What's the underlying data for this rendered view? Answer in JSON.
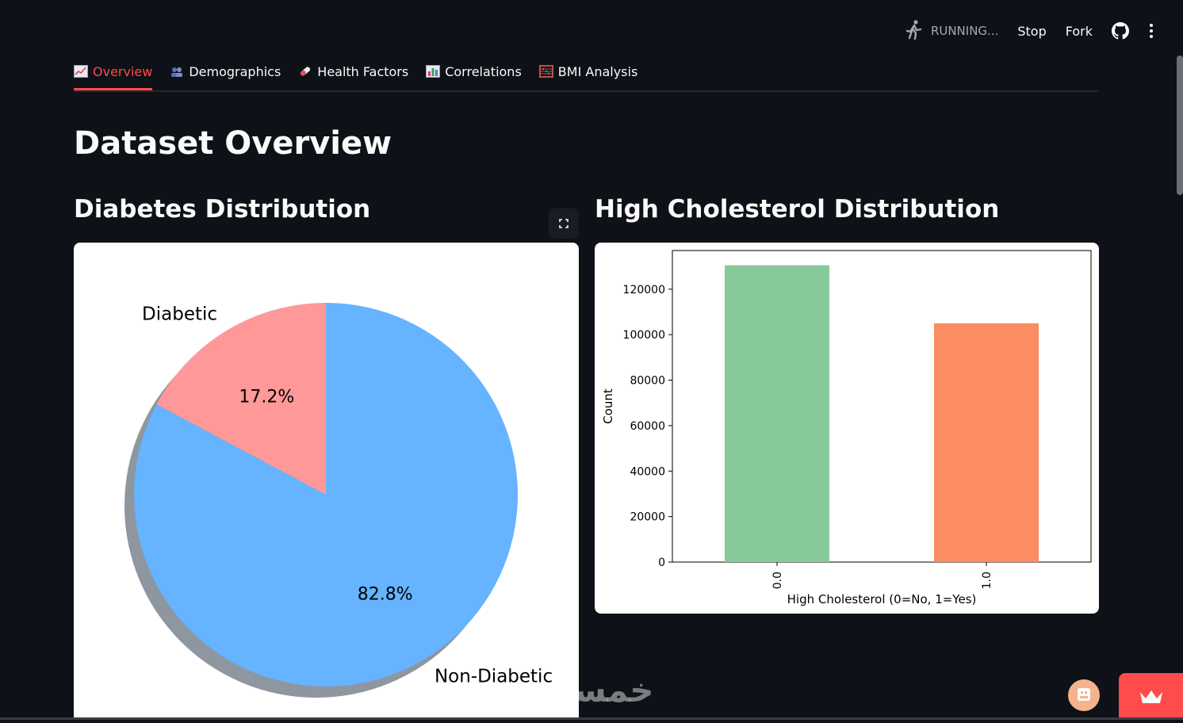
{
  "header": {
    "status": "RUNNING...",
    "stop_label": "Stop",
    "fork_label": "Fork",
    "icons": [
      "running-man-icon",
      "github-icon",
      "more-vertical-icon"
    ]
  },
  "tabs": [
    {
      "label": "Overview",
      "icon": "chart-increasing-emoji",
      "active": true
    },
    {
      "label": "Demographics",
      "icon": "people-emoji",
      "active": false
    },
    {
      "label": "Health Factors",
      "icon": "pill-emoji",
      "active": false
    },
    {
      "label": "Correlations",
      "icon": "bar-chart-emoji",
      "active": false
    },
    {
      "label": "BMI Analysis",
      "icon": "abacus-emoji",
      "active": false
    }
  ],
  "page": {
    "title": "Dataset Overview",
    "left_title": "Diabetes Distribution",
    "right_title": "High Cholesterol Distribution"
  },
  "watermark": "خمسات",
  "colors": {
    "background": "#0e1117",
    "accent": "#ff4b4b",
    "pie_diabetic": "#ff9999",
    "pie_non_diabetic": "#66b3ff",
    "bar_no": "#88c999",
    "bar_yes": "#fc8d62"
  },
  "chart_data": [
    {
      "type": "pie",
      "labels": [
        "Diabetic",
        "Non-Diabetic"
      ],
      "values": [
        17.2,
        82.8
      ],
      "pct_labels": [
        "17.2%",
        "82.8%"
      ],
      "colors": [
        "#ff9999",
        "#66b3ff"
      ],
      "shadow": true
    },
    {
      "type": "bar",
      "categories": [
        "0.0",
        "1.0"
      ],
      "values": [
        130500,
        105000
      ],
      "colors": [
        "#88c999",
        "#fc8d62"
      ],
      "xlabel": "High Cholesterol (0=No, 1=Yes)",
      "ylabel": "Count",
      "ylim": [
        0,
        137000
      ],
      "yticks": [
        0,
        20000,
        40000,
        60000,
        80000,
        100000,
        120000
      ],
      "ytick_labels": [
        "0",
        "20000",
        "40000",
        "60000",
        "80000",
        "100000",
        "120000"
      ]
    }
  ]
}
